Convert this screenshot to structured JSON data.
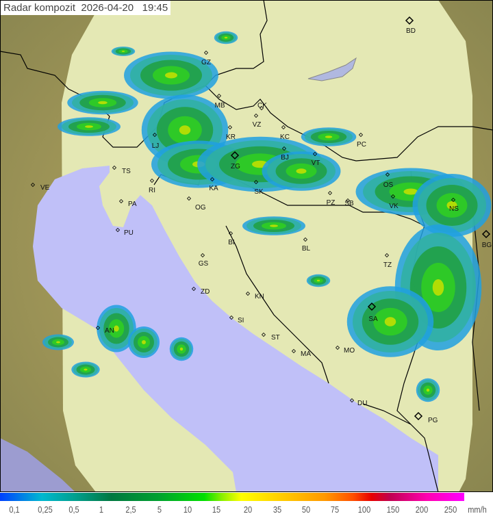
{
  "title": {
    "label": "Radar kompozit",
    "date": "2026-04-20",
    "time": "19:45"
  },
  "map": {
    "colors": {
      "land_in_range": "#e4e8b4",
      "sea_in_range": "#c0c0f8",
      "terrain_out_of_range": "#9a9460",
      "sea_out_of_range": "#9c9cd0",
      "border": "#000000"
    },
    "cities": [
      {
        "code": "GZ"
      },
      {
        "code": "BD"
      },
      {
        "code": "MB"
      },
      {
        "code": "CK"
      },
      {
        "code": "VZ"
      },
      {
        "code": "KR"
      },
      {
        "code": "KC"
      },
      {
        "code": "PC"
      },
      {
        "code": "ZG"
      },
      {
        "code": "BJ"
      },
      {
        "code": "VT"
      },
      {
        "code": "LJ"
      },
      {
        "code": "TS"
      },
      {
        "code": "VE"
      },
      {
        "code": "RI"
      },
      {
        "code": "PA"
      },
      {
        "code": "PU"
      },
      {
        "code": "OG"
      },
      {
        "code": "KA"
      },
      {
        "code": "SK"
      },
      {
        "code": "PZ"
      },
      {
        "code": "SB"
      },
      {
        "code": "OS"
      },
      {
        "code": "VK"
      },
      {
        "code": "NS"
      },
      {
        "code": "BG"
      },
      {
        "code": "BI"
      },
      {
        "code": "BL"
      },
      {
        "code": "GS"
      },
      {
        "code": "ZD"
      },
      {
        "code": "KN"
      },
      {
        "code": "SI"
      },
      {
        "code": "ST"
      },
      {
        "code": "MA"
      },
      {
        "code": "MO"
      },
      {
        "code": "SA"
      },
      {
        "code": "TZ"
      },
      {
        "code": "AN"
      },
      {
        "code": "DU"
      },
      {
        "code": "PG"
      }
    ]
  },
  "legend": {
    "unit": "mm/h",
    "ticks": [
      "0,1",
      "0,25",
      "0,5",
      "1",
      "2,5",
      "5",
      "10",
      "15",
      "20",
      "35",
      "50",
      "75",
      "100",
      "150",
      "200",
      "250"
    ],
    "colors": [
      "#0040ff",
      "#00b8d0",
      "#007840",
      "#00e000",
      "#ffff00",
      "#ff9800",
      "#e80000",
      "#ff00ff"
    ]
  }
}
